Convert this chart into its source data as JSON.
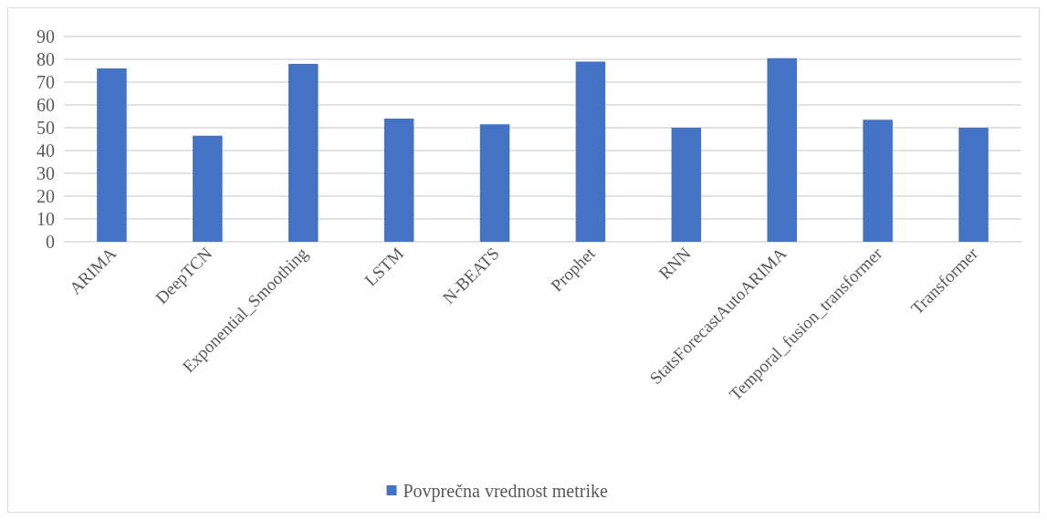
{
  "chart_data": {
    "type": "bar",
    "categories": [
      "ARIMA",
      "DeepTCN",
      "Exponential_Smoothing",
      "LSTM",
      "N-BEATS",
      "Prophet",
      "RNN",
      "StatsForecastAutoARIMA",
      "Temporal_fusion_transformer",
      "Transformer"
    ],
    "series": [
      {
        "name": "Povprečna vrednost metrike",
        "color": "#4472c4",
        "values": [
          76,
          46.5,
          78,
          54,
          51.5,
          79,
          50,
          80.5,
          53.5,
          50
        ]
      }
    ],
    "ylim": [
      0,
      90
    ],
    "yticks": [
      0,
      10,
      20,
      30,
      40,
      50,
      60,
      70,
      80,
      90
    ],
    "grid": "y",
    "legend": "bottom"
  }
}
